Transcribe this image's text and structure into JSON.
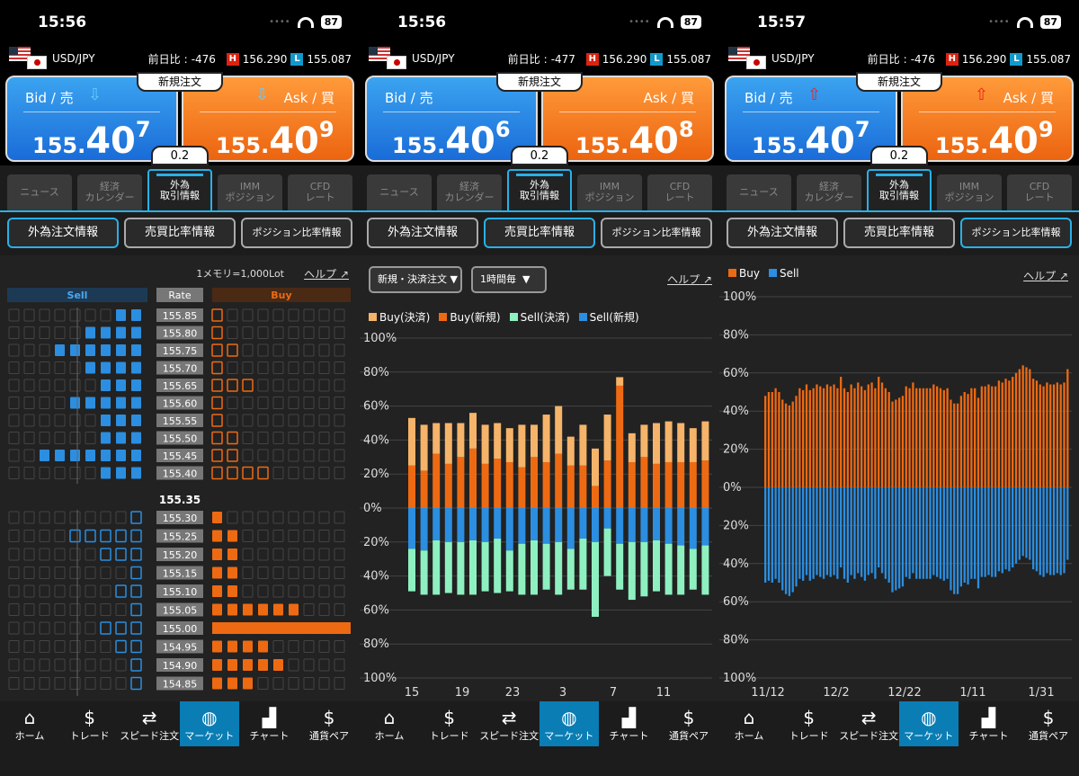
{
  "screens": [
    {
      "time": "15:56",
      "battery": "87",
      "pair": "USD/JPY",
      "change_label": "前日比",
      "change": "-476",
      "high": "156.290",
      "low": "155.087",
      "bid_label": "Bid / 売",
      "ask_label": "Ask / 買",
      "bid_small": "155.",
      "bid_big": "40",
      "bid_sup": "7",
      "ask_small": "155.",
      "ask_big": "40",
      "ask_sup": "9",
      "new_order": "新規注文",
      "spread": "0.2",
      "arrow": "down"
    },
    {
      "time": "15:56",
      "battery": "87",
      "pair": "USD/JPY",
      "change_label": "前日比",
      "change": "-477",
      "high": "156.290",
      "low": "155.087",
      "bid_label": "Bid / 売",
      "ask_label": "Ask / 買",
      "bid_small": "155.",
      "bid_big": "40",
      "bid_sup": "6",
      "ask_small": "155.",
      "ask_big": "40",
      "ask_sup": "8",
      "new_order": "新規注文",
      "spread": "0.2",
      "arrow": "none"
    },
    {
      "time": "15:57",
      "battery": "87",
      "pair": "USD/JPY",
      "change_label": "前日比",
      "change": "-476",
      "high": "156.290",
      "low": "155.087",
      "bid_label": "Bid / 売",
      "ask_label": "Ask / 買",
      "bid_small": "155.",
      "bid_big": "40",
      "bid_sup": "7",
      "ask_small": "155.",
      "ask_big": "40",
      "ask_sup": "9",
      "new_order": "新規注文",
      "spread": "0.2",
      "arrow": "up"
    }
  ],
  "tabs": [
    "ニュース",
    "経済\nカレンダー",
    "外為\n取引情報",
    "IMM\nポジション",
    "CFD\nレート"
  ],
  "subtabs": [
    "外為注文情報",
    "売買比率情報",
    "ポジション比率情報"
  ],
  "nav": [
    {
      "label": "ホーム",
      "icon": "home-icon",
      "glyph": "⌂"
    },
    {
      "label": "トレード",
      "icon": "trade-icon",
      "glyph": "$"
    },
    {
      "label": "スピード注文",
      "icon": "speed-order-icon",
      "glyph": "⇄"
    },
    {
      "label": "マーケット",
      "icon": "globe-icon",
      "glyph": "◍"
    },
    {
      "label": "チャート",
      "icon": "chart-icon",
      "glyph": "▟"
    },
    {
      "label": "通貨ペア",
      "icon": "currency-pair-icon",
      "glyph": "$"
    }
  ],
  "help": "ヘルプ",
  "orderbook": {
    "note": "1メモリ=1,000Lot",
    "sell_header": "Sell",
    "rate_header": "Rate",
    "buy_header": "Buy",
    "current_rate": "155.35",
    "upper": [
      {
        "rate": "155.85",
        "sell": 2,
        "buy": 1
      },
      {
        "rate": "155.80",
        "sell": 4,
        "buy": 1
      },
      {
        "rate": "155.75",
        "sell": 6,
        "buy": 2
      },
      {
        "rate": "155.70",
        "sell": 4,
        "buy": 1
      },
      {
        "rate": "155.65",
        "sell": 3,
        "buy": 3
      },
      {
        "rate": "155.60",
        "sell": 5,
        "buy": 1
      },
      {
        "rate": "155.55",
        "sell": 3,
        "buy": 1
      },
      {
        "rate": "155.50",
        "sell": 3,
        "buy": 2
      },
      {
        "rate": "155.45",
        "sell": 7,
        "buy": 2
      },
      {
        "rate": "155.40",
        "sell": 3,
        "buy": 4
      }
    ],
    "lower": [
      {
        "rate": "155.30",
        "sell": 1,
        "buy": 1
      },
      {
        "rate": "155.25",
        "sell": 5,
        "buy": 2
      },
      {
        "rate": "155.20",
        "sell": 3,
        "buy": 2
      },
      {
        "rate": "155.15",
        "sell": 1,
        "buy": 2
      },
      {
        "rate": "155.10",
        "sell": 2,
        "buy": 2
      },
      {
        "rate": "155.05",
        "sell": 1,
        "buy": 6
      },
      {
        "rate": "155.00",
        "sell": 3,
        "buy": 11
      },
      {
        "rate": "154.95",
        "sell": 2,
        "buy": 4
      },
      {
        "rate": "154.90",
        "sell": 1,
        "buy": 5
      },
      {
        "rate": "154.85",
        "sell": 1,
        "buy": 3
      }
    ]
  },
  "ratio_chart": {
    "dropdown1": "新規・決済注文",
    "dropdown2": "1時間毎",
    "chart_data": {
      "type": "bar",
      "stacked": true,
      "series_names": [
        "Buy(決済)",
        "Buy(新規)",
        "Sell(決済)",
        "Sell(新規)"
      ],
      "colors": [
        "#f5b46a",
        "#ee6a12",
        "#8ef0c0",
        "#2b8ee0"
      ],
      "x_ticks": [
        "15",
        "19",
        "23",
        "3",
        "7",
        "11"
      ],
      "y_ticks": [
        "100%",
        "80%",
        "60%",
        "40%",
        "20%",
        "0%",
        "20%",
        "40%",
        "60%",
        "80%",
        "100%"
      ],
      "ylim": [
        -100,
        100
      ],
      "buy_new": [
        25,
        22,
        32,
        26,
        30,
        35,
        26,
        29,
        27,
        24,
        30,
        27,
        32,
        25,
        25,
        13,
        28,
        72,
        27,
        30,
        26,
        27,
        27,
        27,
        28
      ],
      "buy_settle": [
        28,
        27,
        18,
        24,
        20,
        21,
        23,
        21,
        20,
        25,
        19,
        28,
        28,
        17,
        24,
        22,
        27,
        5,
        17,
        19,
        24,
        24,
        23,
        20,
        23
      ],
      "sell_new": [
        24,
        25,
        19,
        20,
        20,
        19,
        20,
        18,
        25,
        21,
        19,
        21,
        20,
        24,
        18,
        20,
        12,
        21,
        20,
        20,
        19,
        21,
        22,
        24,
        22
      ],
      "sell_settle": [
        25,
        26,
        32,
        30,
        31,
        32,
        29,
        32,
        24,
        30,
        32,
        27,
        31,
        24,
        30,
        44,
        28,
        27,
        34,
        32,
        30,
        30,
        29,
        24,
        29
      ]
    }
  },
  "position_chart": {
    "chart_data": {
      "type": "bar",
      "series_names": [
        "Buy",
        "Sell"
      ],
      "colors": [
        "#ee6a12",
        "#2b8ee0"
      ],
      "x_ticks": [
        "11/12",
        "12/2",
        "12/22",
        "1/11",
        "1/31"
      ],
      "y_ticks": [
        "100%",
        "80%",
        "60%",
        "40%",
        "20%",
        "0%",
        "20%",
        "40%",
        "60%",
        "80%",
        "100%"
      ],
      "ylim": [
        -100,
        100
      ],
      "buy": [
        48,
        50,
        50,
        52,
        50,
        46,
        44,
        43,
        45,
        48,
        52,
        51,
        54,
        51,
        52,
        54,
        53,
        52,
        54,
        53,
        54,
        52,
        58,
        52,
        50,
        54,
        52,
        55,
        53,
        51,
        54,
        55,
        52,
        58,
        55,
        52,
        50,
        45,
        46,
        47,
        48,
        53,
        52,
        55,
        52,
        52,
        52,
        52,
        52,
        54,
        53,
        52,
        51,
        52,
        46,
        44,
        44,
        48,
        50,
        49,
        52,
        52,
        47,
        53,
        53,
        54,
        53,
        53,
        56,
        55,
        57,
        56,
        58,
        60,
        62,
        64,
        63,
        62,
        57,
        56,
        54,
        53,
        55,
        54,
        54,
        55,
        54,
        55,
        62
      ],
      "sell": [
        50,
        49,
        50,
        48,
        50,
        54,
        56,
        57,
        55,
        52,
        48,
        49,
        46,
        49,
        48,
        46,
        47,
        48,
        46,
        47,
        46,
        48,
        42,
        48,
        50,
        46,
        48,
        45,
        47,
        49,
        46,
        45,
        48,
        42,
        45,
        48,
        50,
        55,
        54,
        53,
        52,
        47,
        48,
        45,
        48,
        48,
        48,
        48,
        48,
        46,
        47,
        48,
        49,
        48,
        54,
        56,
        56,
        52,
        50,
        51,
        48,
        48,
        53,
        47,
        47,
        46,
        47,
        47,
        44,
        45,
        43,
        44,
        42,
        40,
        38,
        36,
        37,
        38,
        43,
        44,
        46,
        47,
        45,
        46,
        46,
        45,
        46,
        45,
        38
      ]
    }
  }
}
